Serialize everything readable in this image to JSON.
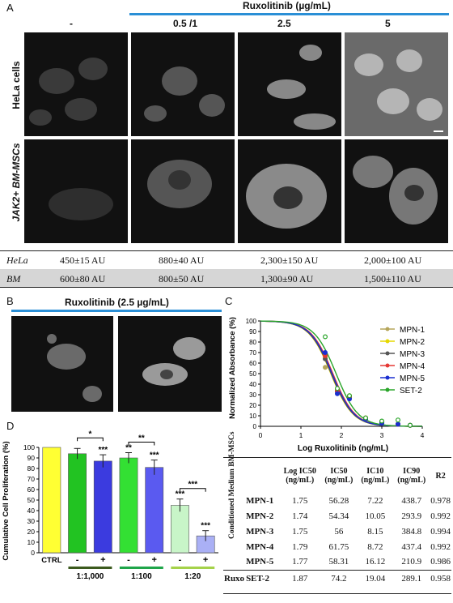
{
  "panelA": {
    "label": "A",
    "drug_header": "Ruxolitinib (µg/mL)",
    "columns": [
      "-",
      "0.5 /1",
      "2.5",
      "5"
    ],
    "rows": [
      "HeLa cells",
      "JAK2+ BM-MSCs"
    ],
    "table": [
      {
        "name": "HeLa",
        "values": [
          "450±15 AU",
          "880±40 AU",
          "2,300±150 AU",
          "2,000±100 AU"
        ]
      },
      {
        "name": "BM",
        "values": [
          "600±80 AU",
          "800±50 AU",
          "1,300±90 AU",
          "1,500±110 AU"
        ]
      }
    ]
  },
  "panelB": {
    "label": "B",
    "header": "Ruxolitinib (2.5 µg/mL)"
  },
  "panelC": {
    "label": "C"
  },
  "panelD": {
    "label": "D"
  },
  "chart_data": [
    {
      "type": "line",
      "panel": "C",
      "xlabel": "Log Ruxolitinib (ng/mL)",
      "ylabel": "Normalized Absorbance (%)",
      "xlim": [
        0,
        4
      ],
      "ylim": [
        0,
        100
      ],
      "xticks": [
        "0",
        "1",
        "2",
        "3",
        "4"
      ],
      "yticks": [
        "0",
        "10",
        "20",
        "30",
        "40",
        "50",
        "60",
        "70",
        "80",
        "90",
        "100"
      ],
      "legend_position": "right",
      "series": [
        {
          "name": "MPN-1",
          "color": "#b5a55a",
          "log_ic50": 1.75,
          "x": [
            1.6,
            1.9,
            2.2,
            2.6,
            3.0,
            3.4,
            3.7
          ],
          "y": [
            56,
            34,
            28,
            7,
            3,
            2,
            1
          ]
        },
        {
          "name": "MPN-2",
          "color": "#e6d800",
          "log_ic50": 1.74,
          "x": [
            1.6,
            1.9,
            2.2,
            2.6,
            3.0,
            3.4,
            3.7
          ],
          "y": [
            66,
            35,
            29,
            8,
            4,
            2,
            1
          ]
        },
        {
          "name": "MPN-3",
          "color": "#555555",
          "log_ic50": 1.75,
          "x": [
            1.6,
            1.9,
            2.2,
            2.6,
            3.0,
            3.4,
            3.7
          ],
          "y": [
            64,
            33,
            27,
            7,
            3,
            2,
            1
          ]
        },
        {
          "name": "MPN-4",
          "color": "#e53935",
          "log_ic50": 1.79,
          "x": [
            1.6,
            1.9,
            2.2,
            2.6,
            3.0,
            3.4,
            3.7
          ],
          "y": [
            67,
            34,
            28,
            8,
            4,
            2,
            1
          ]
        },
        {
          "name": "MPN-5",
          "color": "#1a2fd0",
          "log_ic50": 1.77,
          "x": [
            1.6,
            1.9,
            2.2,
            2.6,
            3.0,
            3.4,
            3.7
          ],
          "y": [
            70,
            31,
            26,
            7,
            3,
            2,
            1
          ]
        },
        {
          "name": "SET-2",
          "color": "#2aa52a",
          "log_ic50": 1.87,
          "x": [
            1.6,
            1.9,
            2.2,
            2.6,
            3.0,
            3.4,
            3.7
          ],
          "y": [
            85,
            36,
            29,
            8,
            5,
            6,
            1
          ]
        }
      ]
    },
    {
      "type": "bar",
      "panel": "D",
      "ylabel": "Cumulative Cell Proliferation (%)",
      "ylim": [
        0,
        100
      ],
      "yticks": [
        "0",
        "10",
        "20",
        "30",
        "40",
        "50",
        "60",
        "70",
        "80",
        "90",
        "100"
      ],
      "categories": [
        "CTRL",
        "-",
        "+",
        "-",
        "+",
        "-",
        "+"
      ],
      "values": [
        100,
        94,
        87,
        90,
        81,
        45,
        16
      ],
      "errors": [
        0,
        5,
        6,
        5,
        7,
        6,
        5
      ],
      "colors": [
        "#ffff33",
        "#22c322",
        "#3b3bdf",
        "#33e033",
        "#5a5af0",
        "#c8f5c8",
        "#aab0f5"
      ],
      "significance": [
        "",
        "",
        "***",
        "**",
        "***",
        "***",
        "***"
      ],
      "brackets": [
        {
          "from": 1,
          "to": 2,
          "label": "*"
        },
        {
          "from": 3,
          "to": 4,
          "label": "**"
        },
        {
          "from": 5,
          "to": 6,
          "label": "***"
        }
      ],
      "groups": [
        {
          "label": "1:1,000",
          "color": "#3c5a1e"
        },
        {
          "label": "1:100",
          "color": "#1fa54a"
        },
        {
          "label": "1:20",
          "color": "#a5d24a"
        }
      ]
    }
  ],
  "ic_table": {
    "headers": [
      "Log IC50 (ng/mL)",
      "IC50 (ng/mL)",
      "IC10 (ng/mL)",
      "IC90 (ng/mL)",
      "R2"
    ],
    "group_label": "Conditioned Medium BM-MSCs",
    "rows": [
      {
        "name": "MPN-1",
        "values": [
          "1.75",
          "56.28",
          "7.22",
          "438.7",
          "0.978"
        ]
      },
      {
        "name": "MPN-2",
        "values": [
          "1.74",
          "54.34",
          "10.05",
          "293.9",
          "0.992"
        ]
      },
      {
        "name": "MPN-3",
        "values": [
          "1.75",
          "56",
          "8.15",
          "384.8",
          "0.994"
        ]
      },
      {
        "name": "MPN-4",
        "values": [
          "1.79",
          "61.75",
          "8.72",
          "437.4",
          "0.992"
        ]
      },
      {
        "name": "MPN-5",
        "values": [
          "1.77",
          "58.31",
          "16.12",
          "210.9",
          "0.986"
        ]
      }
    ],
    "ruxo": {
      "label": "Ruxo",
      "name": "SET-2",
      "values": [
        "1.87",
        "74.2",
        "19.04",
        "289.1",
        "0.958"
      ]
    }
  }
}
